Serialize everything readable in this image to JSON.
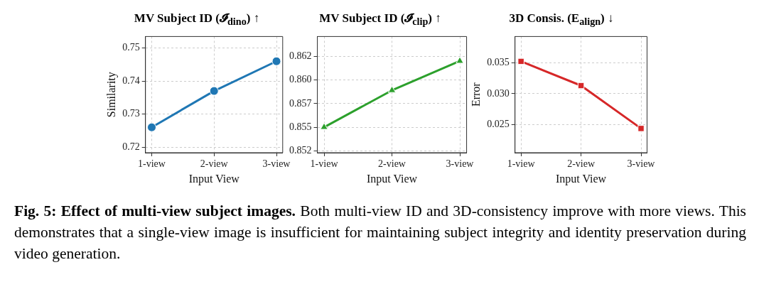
{
  "chart_data": [
    {
      "type": "line",
      "title": "MV Subject ID (𝓘$_{dino}$) ↑",
      "xlabel": "Input View",
      "ylabel": "Similarity",
      "categories": [
        "1-view",
        "2-view",
        "3-view"
      ],
      "series": [
        {
          "color": "#1f77b4",
          "values": [
            0.726,
            0.737,
            0.746
          ]
        }
      ],
      "ylim": [
        0.7183,
        0.7535
      ],
      "yticks": [
        0.72,
        0.73,
        0.74,
        0.75
      ],
      "grid": true,
      "legend": false,
      "marker": "circle",
      "line_style": "solid"
    },
    {
      "type": "line",
      "title": "MV Subject ID (𝓘$_{clip}$) ↑",
      "xlabel": "Input View",
      "categories": [
        "1-view",
        "2-view",
        "3-view"
      ],
      "series": [
        {
          "color": "#2ca02c",
          "values": [
            0.855,
            0.8589,
            0.862
          ]
        }
      ],
      "ylim": [
        0.8523,
        0.8646
      ],
      "yticks": [
        {
          "value": 0.8525,
          "label": "0.852"
        },
        {
          "value": 0.855,
          "label": "0.855"
        },
        {
          "value": 0.8575,
          "label": "0.857"
        },
        {
          "value": 0.86,
          "label": "0.860"
        },
        {
          "value": 0.8625,
          "label": "0.862"
        }
      ],
      "grid": true,
      "legend": false,
      "marker": "triangle",
      "line_style": "solid"
    },
    {
      "type": "line",
      "title": "3D Consis. (E$_{align}$) ↓",
      "xlabel": "Input View",
      "ylabel": "Error",
      "categories": [
        "1-view",
        "2-view",
        "3-view"
      ],
      "series": [
        {
          "color": "#d62728",
          "values": [
            0.0352,
            0.0313,
            0.0244
          ]
        }
      ],
      "ylim": [
        0.0205,
        0.0392
      ],
      "yticks": [
        {
          "value": 0.025,
          "label": "0.025"
        },
        {
          "value": 0.03,
          "label": "0.030"
        },
        {
          "value": 0.035,
          "label": "0.035"
        }
      ],
      "grid": true,
      "legend": false,
      "marker": "square",
      "line_style": "solid",
      "annotations": [
        "Fig. 5: Effect of multi-view subject images.",
        "Both multi-view ID and 3D-consistency improve with more views. This demonstrates that a single-view image is insufficient for maintaining subject integrity and identity preservation during video generation."
      ]
    }
  ]
}
